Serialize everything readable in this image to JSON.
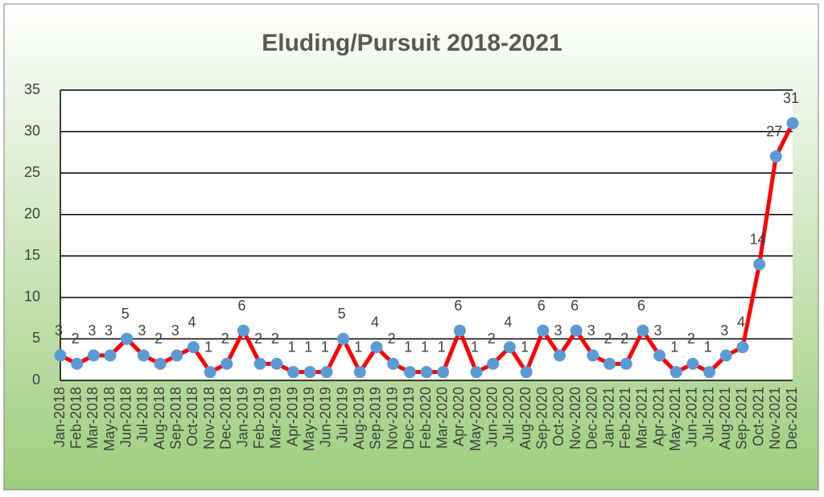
{
  "chart_data": {
    "type": "line",
    "title": "Eluding/Pursuit 2018-2021",
    "categories": [
      "Jan-2018",
      "Feb-2018",
      "Mar-2018",
      "May-2018",
      "Jun-2018",
      "Jul-2018",
      "Aug-2018",
      "Sep-2018",
      "Oct-2018",
      "Nov-2018",
      "Dec-2018",
      "Jan-2019",
      "Feb-2019",
      "Mar-2019",
      "Apr-2019",
      "May-2019",
      "Jun-2019",
      "Jul-2019",
      "Aug-2019",
      "Sep-2019",
      "Nov-2019",
      "Dec-2019",
      "Feb-2020",
      "Mar-2020",
      "Apr-2020",
      "May-2020",
      "Jun-2020",
      "Jul-2020",
      "Aug-2020",
      "Sep-2020",
      "Oct-2020",
      "Nov-2020",
      "Dec-2020",
      "Jan-2021",
      "Feb-2021",
      "Mar-2021",
      "Apr-2021",
      "May-2021",
      "Jun-2021",
      "Jul-2021",
      "Aug-2021",
      "Sep-2021",
      "Oct-2021",
      "Nov-2021",
      "Dec-2021"
    ],
    "values": [
      3,
      2,
      3,
      3,
      5,
      3,
      2,
      3,
      4,
      1,
      2,
      6,
      2,
      2,
      1,
      1,
      1,
      5,
      1,
      4,
      2,
      1,
      1,
      1,
      6,
      1,
      2,
      4,
      1,
      6,
      3,
      6,
      3,
      2,
      2,
      6,
      3,
      1,
      2,
      1,
      3,
      4,
      14,
      27,
      31
    ],
    "color": "#ff0000",
    "marker_color": "#5b9bd5",
    "ylim": [
      0,
      35
    ],
    "yticks": [
      0,
      5,
      10,
      15,
      20,
      25,
      30,
      35
    ],
    "grid": true
  }
}
